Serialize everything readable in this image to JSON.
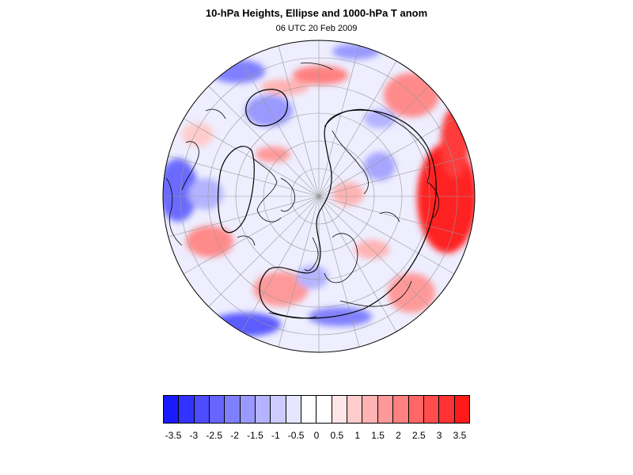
{
  "title": "10-hPa Heights, Ellipse and 1000-hPa T anom",
  "subtitle": "06 UTC 20 Feb 2009",
  "colorbar": {
    "colors": [
      "#1a1aff",
      "#3333ff",
      "#4d4dff",
      "#6666ff",
      "#8080ff",
      "#9999ff",
      "#b3b3ff",
      "#ccccff",
      "#e6e6ff",
      "#ffffff",
      "#ffffff",
      "#ffe6e6",
      "#ffcccc",
      "#ffb3b3",
      "#ff9999",
      "#ff8080",
      "#ff6666",
      "#ff4d4d",
      "#ff3333",
      "#ff1a1a"
    ],
    "labels": [
      "-3.5",
      "-3",
      "-2.5",
      "-2",
      "-1.5",
      "-1",
      "-0.5",
      "0",
      "0.5",
      "1",
      "1.5",
      "2",
      "2.5",
      "3",
      "3.5"
    ],
    "label_bin_index": [
      1,
      3,
      5,
      7,
      9,
      11,
      13,
      15,
      17,
      19,
      21,
      23,
      25,
      27,
      29
    ]
  },
  "map": {
    "projection": "orthographic, North Pole",
    "shading": "1000-hPa temperature anomaly",
    "contour": "10-hPa height ellipse"
  }
}
